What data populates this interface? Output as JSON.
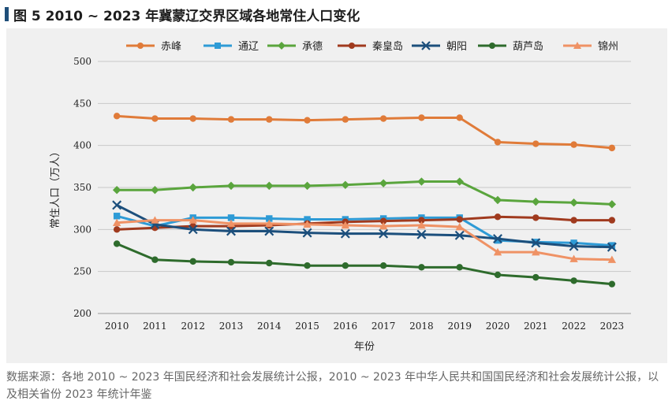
{
  "figure": {
    "title": "图 5  2010 ~ 2023 年冀蒙辽交界区域各地常住人口变化",
    "source": "数据来源：各地 2010 ~ 2023 年国民经济和社会发展统计公报，2010 ~ 2023 年中华人民共和国国民经济和社会发展统计公报，以及相关省份 2023 年统计年鉴"
  },
  "colors": {
    "title_marker": "#1f4e79",
    "panel_bg": "#f0f0f0",
    "gridline": "#c8c8c8"
  },
  "chart_data": {
    "type": "line",
    "title": "",
    "xlabel": "年份",
    "ylabel": "常住人口（万人）",
    "ylim": [
      200,
      500
    ],
    "yticks": [
      200,
      250,
      300,
      350,
      400,
      450,
      500
    ],
    "grid": true,
    "legend_position": "top",
    "categories": [
      "2010",
      "2011",
      "2012",
      "2013",
      "2014",
      "2015",
      "2016",
      "2017",
      "2018",
      "2019",
      "2020",
      "2021",
      "2022",
      "2023"
    ],
    "series": [
      {
        "name": "赤峰",
        "color": "#e07b39",
        "marker": "circle",
        "values": [
          435,
          432,
          432,
          431,
          431,
          430,
          431,
          432,
          433,
          433,
          404,
          402,
          401,
          397
        ]
      },
      {
        "name": "通辽",
        "color": "#2e9bd6",
        "marker": "square",
        "values": [
          316,
          304,
          314,
          314,
          313,
          312,
          312,
          313,
          314,
          314,
          287,
          285,
          284,
          281
        ]
      },
      {
        "name": "承德",
        "color": "#5aa53d",
        "marker": "diamond",
        "values": [
          347,
          347,
          350,
          352,
          352,
          352,
          353,
          355,
          357,
          357,
          335,
          333,
          332,
          330
        ]
      },
      {
        "name": "秦皇岛",
        "color": "#a03a1e",
        "marker": "circle",
        "values": [
          300,
          302,
          304,
          304,
          305,
          307,
          309,
          310,
          311,
          312,
          315,
          314,
          311,
          311
        ]
      },
      {
        "name": "朝阳",
        "color": "#1c4f7c",
        "marker": "x",
        "values": [
          329,
          306,
          300,
          298,
          298,
          296,
          295,
          295,
          294,
          293,
          289,
          284,
          280,
          279
        ]
      },
      {
        "name": "葫芦岛",
        "color": "#2e6b2c",
        "marker": "circle",
        "values": [
          283,
          264,
          262,
          261,
          260,
          257,
          257,
          257,
          255,
          255,
          246,
          243,
          239,
          235
        ]
      },
      {
        "name": "锦州",
        "color": "#ef9265",
        "marker": "triangle",
        "values": [
          308,
          311,
          311,
          307,
          307,
          306,
          305,
          304,
          305,
          303,
          273,
          273,
          265,
          264
        ]
      }
    ]
  }
}
